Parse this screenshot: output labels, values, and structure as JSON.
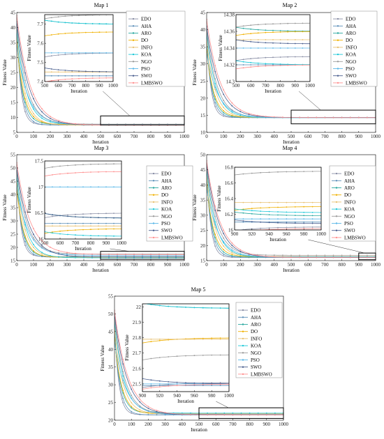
{
  "figure": {
    "panels": [
      "Map 1",
      "Map 2",
      "Map 3",
      "Map 4",
      "Map 5"
    ]
  },
  "colors": {
    "EDO": "#8a8fa6",
    "AHA": "#5b8fb9",
    "ARO": "#2aa8a0",
    "DO": "#f0b000",
    "INFO": "#e8c070",
    "KOA": "#1ec8d8",
    "NGO": "#9a9a9a",
    "PSO": "#5cb8e8",
    "SWO": "#4a5f8f",
    "LMBSWO": "#ff9090"
  },
  "chart_data": [
    {
      "type": "line",
      "title": "Map 1",
      "xlabel": "Iteration",
      "ylabel": "Fitness Value",
      "xlim": [
        0,
        1000
      ],
      "ylim": [
        5,
        45
      ],
      "xticks": [
        0,
        100,
        200,
        300,
        400,
        500,
        600,
        700,
        800,
        900,
        1000
      ],
      "yticks": [
        5,
        10,
        15,
        20,
        25,
        30,
        35,
        40,
        45
      ],
      "legend": [
        "EDO",
        "AHA",
        "ARO",
        "DO",
        "INFO",
        "KOA",
        "NGO",
        "PSO",
        "SWO",
        "LMBSWO"
      ],
      "series": [
        {
          "name": "EDO",
          "start": 40,
          "final": 7.55
        },
        {
          "name": "AHA",
          "start": 38,
          "final": 7.43
        },
        {
          "name": "ARO",
          "start": 36,
          "final": 7.7
        },
        {
          "name": "DO",
          "start": 35,
          "final": 7.66
        },
        {
          "name": "INFO",
          "start": 37,
          "final": 7.45
        },
        {
          "name": "KOA",
          "start": 39,
          "final": 7.7
        },
        {
          "name": "NGO",
          "start": 41,
          "final": 7.75
        },
        {
          "name": "PSO",
          "start": 34,
          "final": 7.55
        },
        {
          "name": "SWO",
          "start": 42,
          "final": 7.45
        },
        {
          "name": "LMBSWO",
          "start": 44,
          "final": 7.42
        }
      ],
      "inset": {
        "xlabel": "Iteration",
        "ylabel": "Fitness Value",
        "xlim": [
          500,
          1000
        ],
        "ylim": [
          7.4,
          7.75
        ],
        "xticks": [
          500,
          600,
          700,
          800,
          900,
          1000
        ],
        "yticks": [
          7.4,
          7.5,
          7.6,
          7.7
        ],
        "ytick_labels": [
          "7.4",
          "7.5",
          "7.6",
          "7.7"
        ]
      }
    },
    {
      "type": "line",
      "title": "Map 2",
      "xlabel": "Iteration",
      "ylabel": "Fitness Value",
      "xlim": [
        0,
        1000
      ],
      "ylim": [
        10,
        45
      ],
      "xticks": [
        0,
        100,
        200,
        300,
        400,
        500,
        600,
        700,
        800,
        900,
        1000
      ],
      "yticks": [
        10,
        15,
        20,
        25,
        30,
        35,
        40,
        45
      ],
      "legend": [
        "EDO",
        "AHA",
        "ARO",
        "DO",
        "INFO",
        "KOA",
        "NGO",
        "PSO",
        "SWO",
        "LMBSWO"
      ],
      "series": [
        {
          "name": "EDO",
          "start": 38,
          "final": 14.33
        },
        {
          "name": "AHA",
          "start": 36,
          "final": 14.32
        },
        {
          "name": "ARO",
          "start": 35,
          "final": 14.36
        },
        {
          "name": "DO",
          "start": 34,
          "final": 14.36
        },
        {
          "name": "INFO",
          "start": 37,
          "final": 14.35
        },
        {
          "name": "KOA",
          "start": 39,
          "final": 14.32
        },
        {
          "name": "NGO",
          "start": 40,
          "final": 14.37
        },
        {
          "name": "PSO",
          "start": 33,
          "final": 14.34
        },
        {
          "name": "SWO",
          "start": 41,
          "final": 14.345
        },
        {
          "name": "LMBSWO",
          "start": 43,
          "final": 14.32
        }
      ],
      "inset": {
        "xlabel": "Iteration",
        "ylabel": "Fitness Value",
        "xlim": [
          500,
          1000
        ],
        "ylim": [
          14.3,
          14.38
        ],
        "xticks": [
          500,
          600,
          700,
          800,
          900,
          1000
        ],
        "yticks": [
          14.3,
          14.32,
          14.34,
          14.36,
          14.38
        ],
        "ytick_labels": [
          "14.3",
          "14.32",
          "14.34",
          "14.36",
          "14.38"
        ]
      }
    },
    {
      "type": "line",
      "title": "Map 3",
      "xlabel": "Iteration",
      "ylabel": "Fitness Value",
      "xlim": [
        0,
        1000
      ],
      "ylim": [
        15,
        55
      ],
      "xticks": [
        0,
        100,
        200,
        300,
        400,
        500,
        600,
        700,
        800,
        900,
        1000
      ],
      "yticks": [
        15,
        20,
        25,
        30,
        35,
        40,
        45,
        50,
        55
      ],
      "legend": [
        "EDO",
        "AHA",
        "ARO",
        "DO",
        "INFO",
        "KOA",
        "NGO",
        "PSO",
        "SWO",
        "LMBSWO"
      ],
      "series": [
        {
          "name": "EDO",
          "start": 48,
          "final": 16.5
        },
        {
          "name": "AHA",
          "start": 46,
          "final": 16.3
        },
        {
          "name": "ARO",
          "start": 44,
          "final": 16.4
        },
        {
          "name": "DO",
          "start": 42,
          "final": 16.2
        },
        {
          "name": "INFO",
          "start": 45,
          "final": 16.25
        },
        {
          "name": "KOA",
          "start": 47,
          "final": 16.05
        },
        {
          "name": "NGO",
          "start": 49,
          "final": 17.45
        },
        {
          "name": "PSO",
          "start": 43,
          "final": 17.0
        },
        {
          "name": "SWO",
          "start": 50,
          "final": 16.4
        },
        {
          "name": "LMBSWO",
          "start": 52,
          "final": 17.3
        }
      ],
      "inset": {
        "xlabel": "Iteration",
        "ylabel": "Fitness Value",
        "xlim": [
          500,
          1000
        ],
        "ylim": [
          16,
          17.5
        ],
        "xticks": [
          500,
          600,
          700,
          800,
          900,
          1000
        ],
        "yticks": [
          16,
          16.5,
          17,
          17.5
        ],
        "ytick_labels": [
          "16",
          "16.5",
          "17",
          "17.5"
        ]
      }
    },
    {
      "type": "line",
      "title": "Map 4",
      "xlabel": "Iteration",
      "ylabel": "Fitness Value",
      "xlim": [
        0,
        1000
      ],
      "ylim": [
        15,
        50
      ],
      "xticks": [
        0,
        100,
        200,
        300,
        400,
        500,
        600,
        700,
        800,
        900,
        1000
      ],
      "yticks": [
        15,
        20,
        25,
        30,
        35,
        40,
        45,
        50
      ],
      "legend": [
        "EDO",
        "AHA",
        "ARO",
        "DO",
        "INFO",
        "KOA",
        "NGO",
        "PSO",
        "SWO",
        "LMBSWO"
      ],
      "series": [
        {
          "name": "EDO",
          "start": 44,
          "final": 16.04
        },
        {
          "name": "AHA",
          "start": 42,
          "final": 16.1
        },
        {
          "name": "ARO",
          "start": 41,
          "final": 16.18
        },
        {
          "name": "DO",
          "start": 40,
          "final": 16.3
        },
        {
          "name": "INFO",
          "start": 43,
          "final": 16.35
        },
        {
          "name": "KOA",
          "start": 45,
          "final": 16.22
        },
        {
          "name": "NGO",
          "start": 46,
          "final": 16.75
        },
        {
          "name": "PSO",
          "start": 39,
          "final": 16.14
        },
        {
          "name": "SWO",
          "start": 47,
          "final": 16.08
        },
        {
          "name": "LMBSWO",
          "start": 48,
          "final": 16.02
        }
      ],
      "inset": {
        "xlabel": "Iteration",
        "ylabel": "Fitness Value",
        "xlim": [
          900,
          1000
        ],
        "ylim": [
          16,
          16.8
        ],
        "xticks": [
          900,
          920,
          940,
          960,
          980,
          1000
        ],
        "yticks": [
          16,
          16.2,
          16.4,
          16.6,
          16.8
        ],
        "ytick_labels": [
          "16",
          "16.2",
          "16.4",
          "16.6",
          "16.8"
        ]
      }
    },
    {
      "type": "line",
      "title": "Map 5",
      "xlabel": "Iteration",
      "ylabel": "Fitness Value",
      "xlim": [
        0,
        1000
      ],
      "ylim": [
        20,
        55
      ],
      "xticks": [
        0,
        100,
        200,
        300,
        400,
        500,
        600,
        700,
        800,
        900,
        1000
      ],
      "yticks": [
        20,
        25,
        30,
        35,
        40,
        45,
        50,
        55
      ],
      "legend": [
        "EDO",
        "AHA",
        "ARO",
        "DO",
        "INFO",
        "KOA",
        "NGO",
        "PSO",
        "SWO",
        "LMBSWO"
      ],
      "series": [
        {
          "name": "EDO",
          "start": 47,
          "final": 21.51
        },
        {
          "name": "AHA",
          "start": 45,
          "final": 21.49
        },
        {
          "name": "ARO",
          "start": 44,
          "final": 21.99
        },
        {
          "name": "DO",
          "start": 43,
          "final": 21.8
        },
        {
          "name": "INFO",
          "start": 46,
          "final": 21.79
        },
        {
          "name": "KOA",
          "start": 48,
          "final": 21.99
        },
        {
          "name": "NGO",
          "start": 49,
          "final": 21.69
        },
        {
          "name": "PSO",
          "start": 42,
          "final": 21.5
        },
        {
          "name": "SWO",
          "start": 50,
          "final": 21.5
        },
        {
          "name": "LMBSWO",
          "start": 51,
          "final": 21.5
        }
      ],
      "inset": {
        "xlabel": "Iteration",
        "ylabel": "Fitness Value",
        "xlim": [
          900,
          1000
        ],
        "ylim": [
          21.45,
          22.02
        ],
        "xticks": [
          900,
          920,
          940,
          960,
          980,
          1000
        ],
        "yticks": [
          21.5,
          21.6,
          21.7,
          21.8,
          21.9,
          22
        ],
        "ytick_labels": [
          "21.5",
          "21.6",
          "21.7",
          "21.8",
          "21.9",
          "22"
        ]
      }
    }
  ]
}
